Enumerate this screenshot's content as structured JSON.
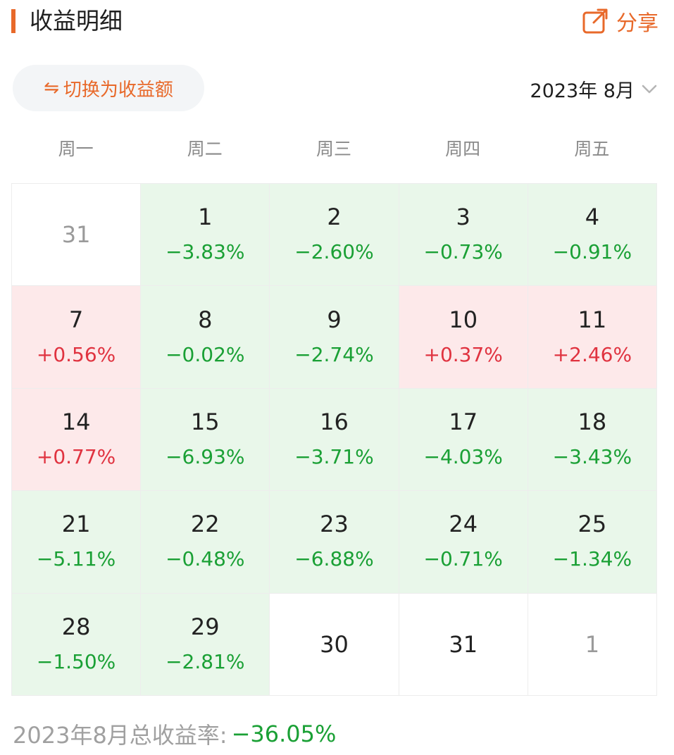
{
  "header": {
    "title": "收益明细",
    "share_label": "分享",
    "accent_color": "#e8692a"
  },
  "toggle": {
    "icon": "swap-arrows-icon",
    "icon_glyph": "⇋",
    "label": "切换为收益额"
  },
  "month_selector": {
    "label": "2023年 8月",
    "icon": "chevron-down-icon"
  },
  "weekdays": [
    "周一",
    "周二",
    "周三",
    "周四",
    "周五"
  ],
  "calendar": {
    "cells": [
      {
        "day": "31",
        "pct": "",
        "state": "none",
        "muted": true
      },
      {
        "day": "1",
        "pct": "−3.83%",
        "state": "down",
        "muted": false
      },
      {
        "day": "2",
        "pct": "−2.60%",
        "state": "down",
        "muted": false
      },
      {
        "day": "3",
        "pct": "−0.73%",
        "state": "down",
        "muted": false
      },
      {
        "day": "4",
        "pct": "−0.91%",
        "state": "down",
        "muted": false
      },
      {
        "day": "7",
        "pct": "+0.56%",
        "state": "up",
        "muted": false
      },
      {
        "day": "8",
        "pct": "−0.02%",
        "state": "down",
        "muted": false
      },
      {
        "day": "9",
        "pct": "−2.74%",
        "state": "down",
        "muted": false
      },
      {
        "day": "10",
        "pct": "+0.37%",
        "state": "up",
        "muted": false
      },
      {
        "day": "11",
        "pct": "+2.46%",
        "state": "up",
        "muted": false
      },
      {
        "day": "14",
        "pct": "+0.77%",
        "state": "up",
        "muted": false
      },
      {
        "day": "15",
        "pct": "−6.93%",
        "state": "down",
        "muted": false
      },
      {
        "day": "16",
        "pct": "−3.71%",
        "state": "down",
        "muted": false
      },
      {
        "day": "17",
        "pct": "−4.03%",
        "state": "down",
        "muted": false
      },
      {
        "day": "18",
        "pct": "−3.43%",
        "state": "down",
        "muted": false
      },
      {
        "day": "21",
        "pct": "−5.11%",
        "state": "down",
        "muted": false
      },
      {
        "day": "22",
        "pct": "−0.48%",
        "state": "down",
        "muted": false
      },
      {
        "day": "23",
        "pct": "−6.88%",
        "state": "down",
        "muted": false
      },
      {
        "day": "24",
        "pct": "−0.71%",
        "state": "down",
        "muted": false
      },
      {
        "day": "25",
        "pct": "−1.34%",
        "state": "down",
        "muted": false
      },
      {
        "day": "28",
        "pct": "−1.50%",
        "state": "down",
        "muted": false
      },
      {
        "day": "29",
        "pct": "−2.81%",
        "state": "down",
        "muted": false
      },
      {
        "day": "30",
        "pct": "",
        "state": "none",
        "muted": false
      },
      {
        "day": "31",
        "pct": "",
        "state": "none",
        "muted": false
      },
      {
        "day": "1",
        "pct": "",
        "state": "none",
        "muted": true
      }
    ],
    "colors": {
      "down_bg": "#e9f7ea",
      "up_bg": "#fde9ea",
      "down_text": "#1aa035",
      "up_text": "#e03340"
    }
  },
  "footer": {
    "total_label": "2023年8月总收益率:",
    "total_value": "−36.05%"
  }
}
